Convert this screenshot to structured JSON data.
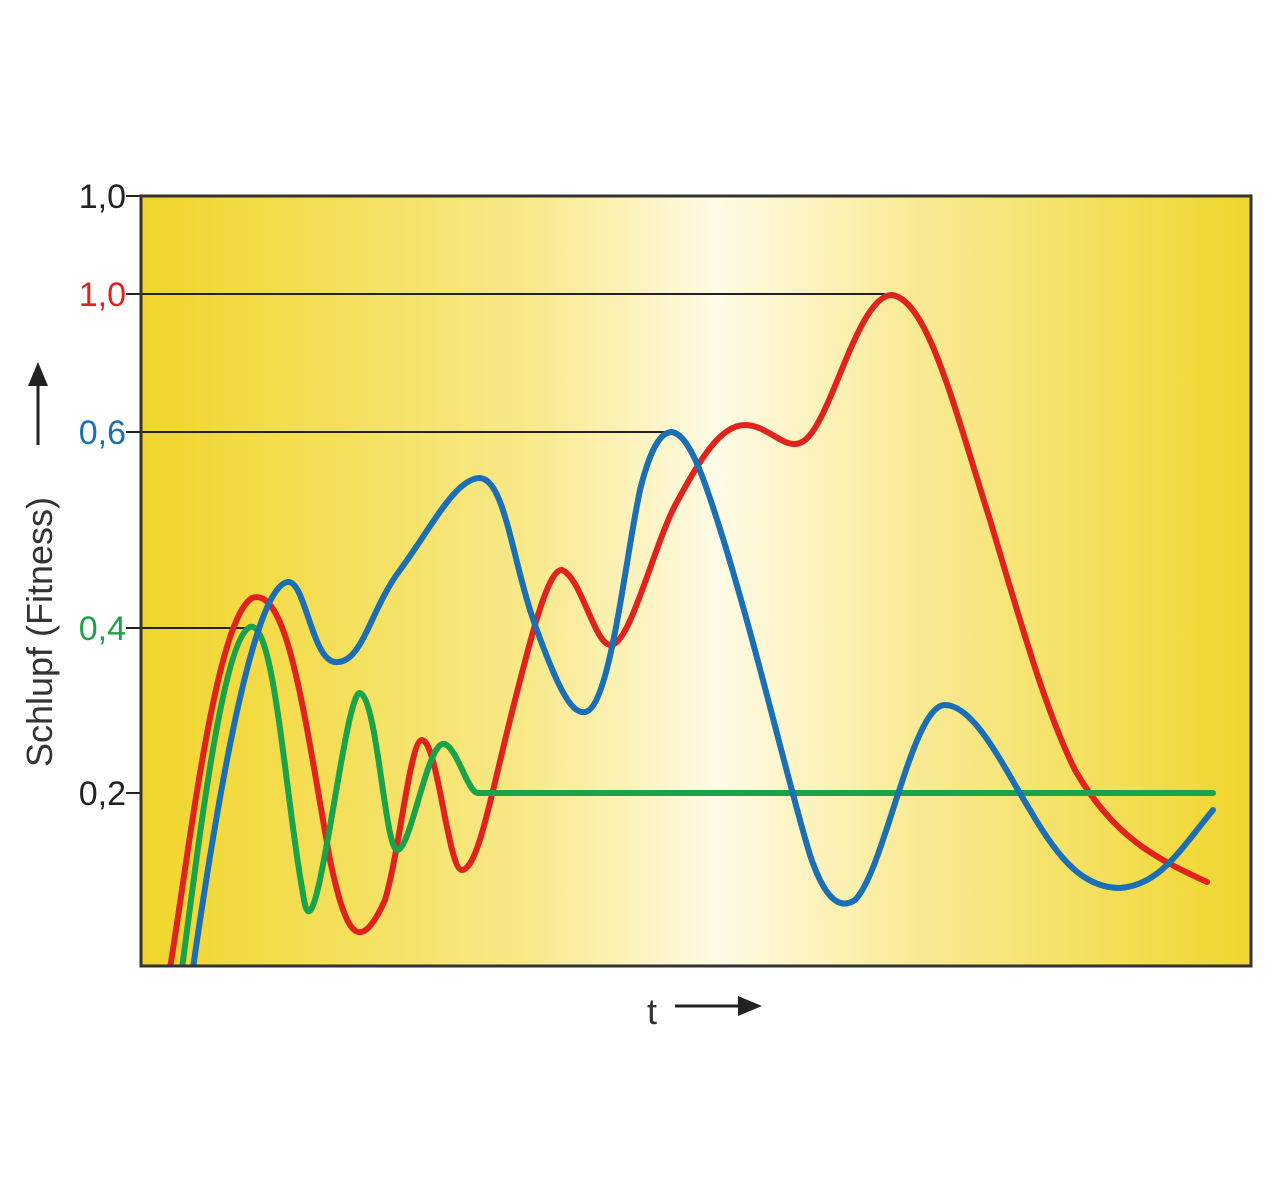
{
  "chart_data": {
    "type": "line",
    "xlabel": "t",
    "ylabel": "Schlupf (Fitness)",
    "y_tick_labels": [
      {
        "label": "1,0",
        "color": "#222222"
      },
      {
        "label": "1,0",
        "color": "#e0231c"
      },
      {
        "label": "0,6",
        "color": "#1a6fb5"
      },
      {
        "label": "0,4",
        "color": "#1aa34a"
      },
      {
        "label": "0,2",
        "color": "#222222"
      }
    ],
    "colors": {
      "red": "#e0231c",
      "blue": "#1a6fb5",
      "green": "#1aa34a",
      "frame": "#333333",
      "background_edge": "#f1d52a",
      "background_center": "#fffbe6"
    },
    "grid": false,
    "legend": "none"
  }
}
